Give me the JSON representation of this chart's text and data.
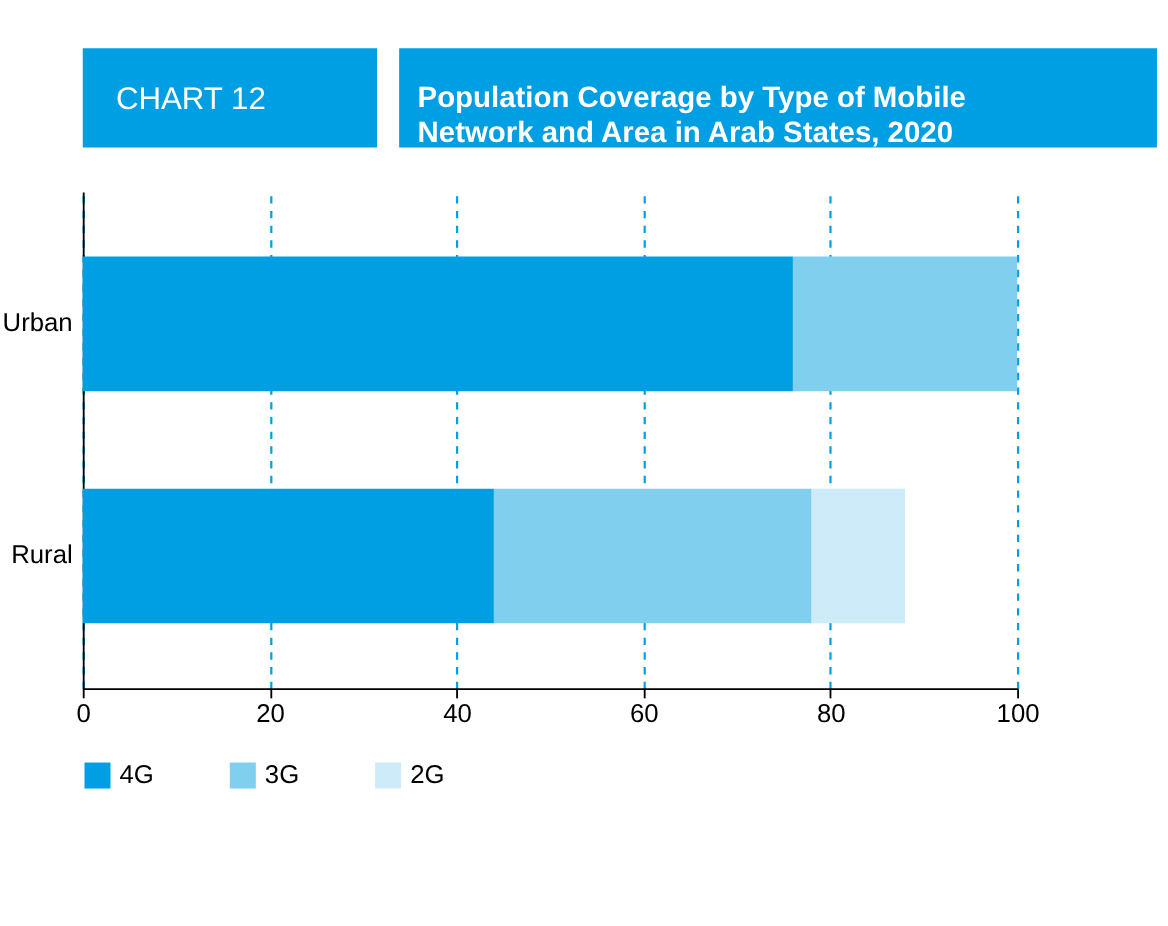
{
  "chart_data": {
    "type": "bar",
    "orientation": "horizontal",
    "stacked": true,
    "title": "Population Coverage by Type of Mobile Network and Area in Arab States, 2020",
    "annotations": [
      "CHART 12"
    ],
    "categories": [
      "Urban",
      "Rural"
    ],
    "series": [
      {
        "name": "4G",
        "color": "#009fe3",
        "values": [
          76,
          44
        ]
      },
      {
        "name": "3G",
        "color": "#80cfef",
        "values": [
          24,
          34
        ]
      },
      {
        "name": "2G",
        "color": "#cdebf8",
        "values": [
          0,
          10
        ]
      }
    ],
    "xlim": [
      0,
      100
    ],
    "xticks": [
      0,
      20,
      40,
      60,
      80,
      100
    ],
    "grid": "x",
    "legend": "bottom"
  }
}
